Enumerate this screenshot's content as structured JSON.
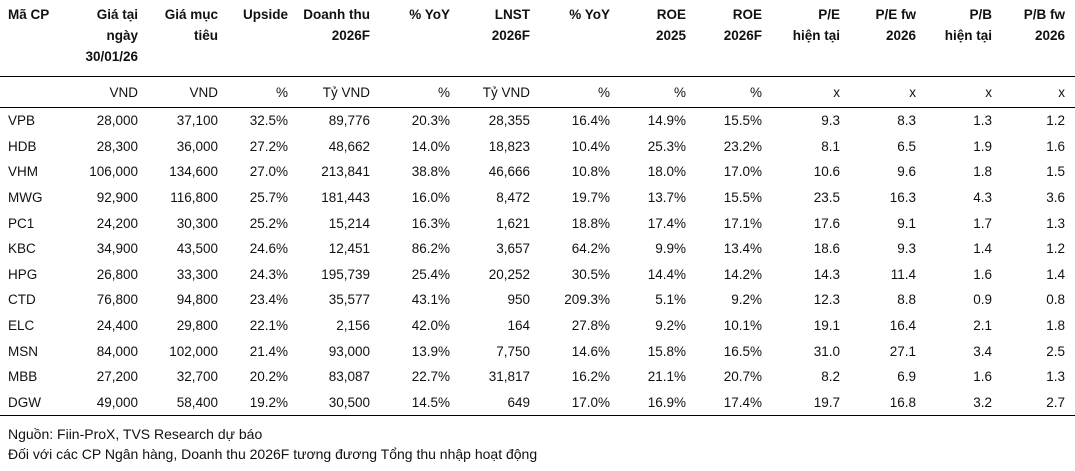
{
  "headers": [
    [
      "Mã CP"
    ],
    [
      "Giá tại",
      "ngày",
      "30/01/26"
    ],
    [
      "Giá mục",
      "tiêu"
    ],
    [
      "Upside"
    ],
    [
      "Doanh thu",
      "2026F"
    ],
    [
      "% YoY"
    ],
    [
      "LNST",
      "2026F"
    ],
    [
      "% YoY"
    ],
    [
      "ROE",
      "2025"
    ],
    [
      "ROE",
      "2026F"
    ],
    [
      "P/E",
      "hiện tại"
    ],
    [
      "P/E fw",
      "2026"
    ],
    [
      "P/B",
      "hiện tại"
    ],
    [
      "P/B fw",
      "2026"
    ]
  ],
  "units": [
    "",
    "VND",
    "VND",
    "%",
    "Tỷ VND",
    "%",
    "Tỷ VND",
    "%",
    "%",
    "%",
    "x",
    "x",
    "x",
    "x"
  ],
  "rows": [
    [
      "VPB",
      "28,000",
      "37,100",
      "32.5%",
      "89,776",
      "20.3%",
      "28,355",
      "16.4%",
      "14.9%",
      "15.5%",
      "9.3",
      "8.3",
      "1.3",
      "1.2"
    ],
    [
      "HDB",
      "28,300",
      "36,000",
      "27.2%",
      "48,662",
      "14.0%",
      "18,823",
      "10.4%",
      "25.3%",
      "23.2%",
      "8.1",
      "6.5",
      "1.9",
      "1.6"
    ],
    [
      "VHM",
      "106,000",
      "134,600",
      "27.0%",
      "213,841",
      "38.8%",
      "46,666",
      "10.8%",
      "18.0%",
      "17.0%",
      "10.6",
      "9.6",
      "1.8",
      "1.5"
    ],
    [
      "MWG",
      "92,900",
      "116,800",
      "25.7%",
      "181,443",
      "16.0%",
      "8,472",
      "19.7%",
      "13.7%",
      "15.5%",
      "23.5",
      "16.3",
      "4.3",
      "3.6"
    ],
    [
      "PC1",
      "24,200",
      "30,300",
      "25.2%",
      "15,214",
      "16.3%",
      "1,621",
      "18.8%",
      "17.4%",
      "17.1%",
      "17.6",
      "9.1",
      "1.7",
      "1.3"
    ],
    [
      "KBC",
      "34,900",
      "43,500",
      "24.6%",
      "12,451",
      "86.2%",
      "3,657",
      "64.2%",
      "9.9%",
      "13.4%",
      "18.6",
      "9.3",
      "1.4",
      "1.2"
    ],
    [
      "HPG",
      "26,800",
      "33,300",
      "24.3%",
      "195,739",
      "25.4%",
      "20,252",
      "30.5%",
      "14.4%",
      "14.2%",
      "14.3",
      "11.4",
      "1.6",
      "1.4"
    ],
    [
      "CTD",
      "76,800",
      "94,800",
      "23.4%",
      "35,577",
      "43.1%",
      "950",
      "209.3%",
      "5.1%",
      "9.2%",
      "12.3",
      "8.8",
      "0.9",
      "0.8"
    ],
    [
      "ELC",
      "24,400",
      "29,800",
      "22.1%",
      "2,156",
      "42.0%",
      "164",
      "27.8%",
      "9.2%",
      "10.1%",
      "19.1",
      "16.4",
      "2.1",
      "1.8"
    ],
    [
      "MSN",
      "84,000",
      "102,000",
      "21.4%",
      "93,000",
      "13.9%",
      "7,750",
      "14.6%",
      "15.8%",
      "16.5%",
      "31.0",
      "27.1",
      "3.4",
      "2.5"
    ],
    [
      "MBB",
      "27,200",
      "32,700",
      "20.2%",
      "83,087",
      "22.7%",
      "31,817",
      "16.2%",
      "21.1%",
      "20.7%",
      "8.2",
      "6.9",
      "1.6",
      "1.3"
    ],
    [
      "DGW",
      "49,000",
      "58,400",
      "19.2%",
      "30,500",
      "14.5%",
      "649",
      "17.0%",
      "16.9%",
      "17.4%",
      "19.7",
      "16.8",
      "3.2",
      "2.7"
    ]
  ],
  "notes": {
    "source": "Nguồn: Fiin-ProX, TVS Research dự báo",
    "bank_note": "Đối với các CP Ngân hàng, Doanh thu 2026F tương đương Tổng thu nhập hoạt động"
  }
}
